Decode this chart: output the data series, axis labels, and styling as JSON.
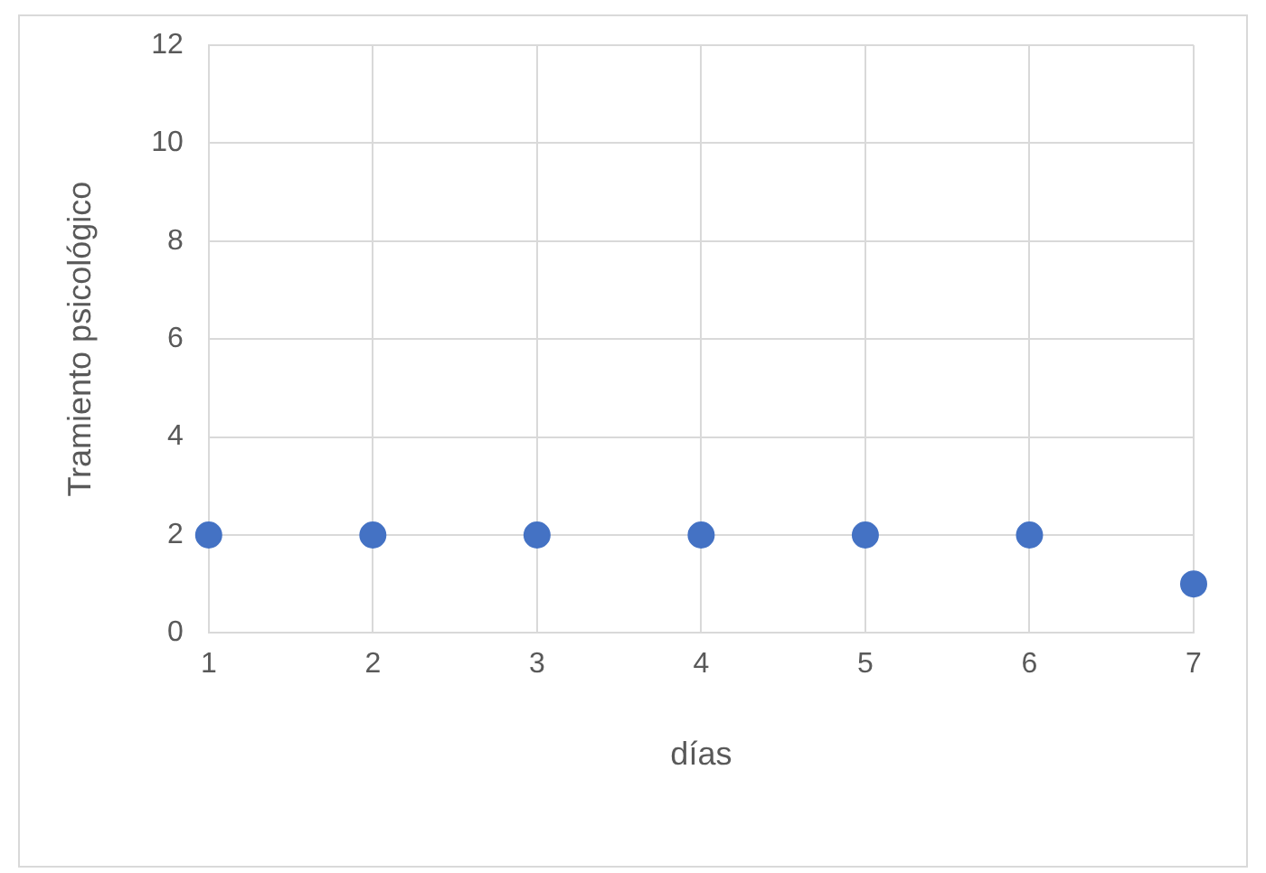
{
  "chart_data": {
    "type": "scatter",
    "xlabel": "días",
    "ylabel": "Tramiento psicológico",
    "x": [
      1,
      2,
      3,
      4,
      5,
      6,
      7
    ],
    "series": [
      {
        "color": "#4472c4",
        "values": [
          2,
          2,
          2,
          2,
          2,
          2,
          1
        ]
      }
    ],
    "xlim": [
      1,
      7
    ],
    "xticks": [
      1,
      2,
      3,
      4,
      5,
      6,
      7
    ],
    "ylim": [
      0,
      12
    ],
    "yticks": [
      0,
      2,
      4,
      6,
      8,
      10,
      12
    ],
    "grid": true,
    "legend": false,
    "marker": "circle"
  }
}
